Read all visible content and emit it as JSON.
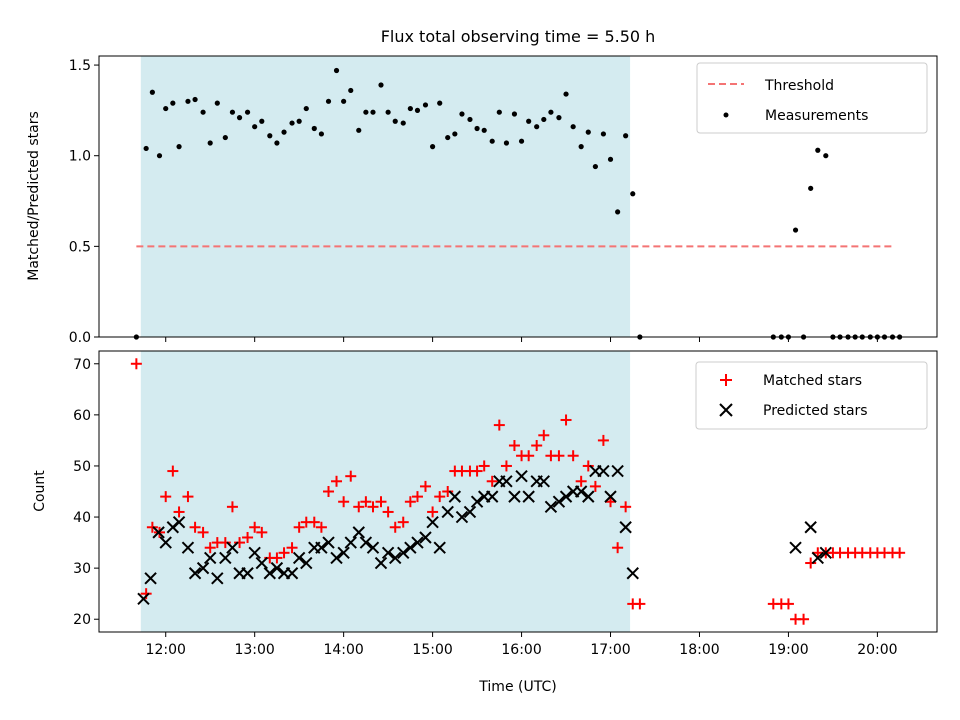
{
  "figure": {
    "title": "Flux total observing time = 5.50 h",
    "shaded_region": {
      "x_start": 11.72,
      "x_end": 17.22,
      "color": "#d4ebf0"
    }
  },
  "chart_data": [
    {
      "type": "scatter",
      "id": "top",
      "title": "Flux total observing time = 5.50 h",
      "xlabel": "",
      "ylabel": "Matched/Predicted stars",
      "xlim": [
        11.25,
        20.67
      ],
      "ylim": [
        0.0,
        1.55
      ],
      "yticks": [
        0.0,
        0.5,
        1.0,
        1.5
      ],
      "ytick_labels": [
        "0.0",
        "0.5",
        "1.0",
        "1.5"
      ],
      "threshold": {
        "name": "Threshold",
        "value": 0.5,
        "x_start": 11.67,
        "x_end": 20.2,
        "color": "#f47474"
      },
      "legend": {
        "position": "top-right",
        "entries": [
          "Threshold",
          "Measurements"
        ]
      },
      "series": [
        {
          "name": "Measurements",
          "color": "#000000",
          "x": [
            11.67,
            11.78,
            11.85,
            11.93,
            12.0,
            12.08,
            12.15,
            12.25,
            12.33,
            12.42,
            12.5,
            12.58,
            12.67,
            12.75,
            12.83,
            12.92,
            13.0,
            13.08,
            13.17,
            13.25,
            13.33,
            13.42,
            13.5,
            13.58,
            13.67,
            13.75,
            13.83,
            13.92,
            14.0,
            14.08,
            14.17,
            14.25,
            14.33,
            14.42,
            14.5,
            14.58,
            14.67,
            14.75,
            14.83,
            14.92,
            15.0,
            15.08,
            15.17,
            15.25,
            15.33,
            15.42,
            15.5,
            15.58,
            15.67,
            15.75,
            15.83,
            15.92,
            16.0,
            16.08,
            16.17,
            16.25,
            16.33,
            16.42,
            16.5,
            16.58,
            16.67,
            16.75,
            16.83,
            16.92,
            17.0,
            17.08,
            17.17,
            17.25,
            17.33,
            18.83,
            18.92,
            19.0,
            19.08,
            19.17,
            19.25,
            19.33,
            19.42,
            19.5,
            19.58,
            19.67,
            19.75,
            19.83,
            19.92,
            20.0,
            20.08,
            20.17,
            20.25
          ],
          "y": [
            0.0,
            1.04,
            1.35,
            1.0,
            1.26,
            1.29,
            1.05,
            1.3,
            1.31,
            1.24,
            1.07,
            1.29,
            1.1,
            1.24,
            1.21,
            1.24,
            1.16,
            1.19,
            1.11,
            1.07,
            1.13,
            1.18,
            1.19,
            1.26,
            1.15,
            1.12,
            1.3,
            1.47,
            1.3,
            1.36,
            1.14,
            1.24,
            1.24,
            1.39,
            1.24,
            1.19,
            1.18,
            1.26,
            1.25,
            1.28,
            1.05,
            1.29,
            1.1,
            1.12,
            1.23,
            1.2,
            1.15,
            1.14,
            1.08,
            1.24,
            1.07,
            1.23,
            1.08,
            1.19,
            1.16,
            1.2,
            1.24,
            1.21,
            1.34,
            1.16,
            1.05,
            1.13,
            0.94,
            1.12,
            0.98,
            0.69,
            1.11,
            0.79,
            0.0,
            0.0,
            0.0,
            0.0,
            0.59,
            0.0,
            0.82,
            1.03,
            1.0,
            0.0,
            0.0,
            0.0,
            0.0,
            0.0,
            0.0,
            0.0,
            0.0,
            0.0,
            0.0
          ]
        }
      ]
    },
    {
      "type": "scatter",
      "id": "bottom",
      "xlabel": "Time (UTC)",
      "ylabel": "Count",
      "xlim": [
        11.25,
        20.67
      ],
      "ylim": [
        17.5,
        72.5
      ],
      "xticks": [
        12,
        13,
        14,
        15,
        16,
        17,
        18,
        19,
        20
      ],
      "xtick_labels": [
        "12:00",
        "13:00",
        "14:00",
        "15:00",
        "16:00",
        "17:00",
        "18:00",
        "19:00",
        "20:00"
      ],
      "yticks": [
        20,
        30,
        40,
        50,
        60,
        70
      ],
      "ytick_labels": [
        "20",
        "30",
        "40",
        "50",
        "60",
        "70"
      ],
      "legend": {
        "position": "top-right",
        "entries": [
          "Matched stars",
          "Predicted stars"
        ]
      },
      "series": [
        {
          "name": "Matched stars",
          "color": "#ff0000",
          "marker": "plus",
          "x": [
            11.67,
            11.78,
            11.85,
            11.93,
            12.0,
            12.08,
            12.15,
            12.25,
            12.33,
            12.42,
            12.5,
            12.58,
            12.67,
            12.75,
            12.83,
            12.92,
            13.0,
            13.08,
            13.17,
            13.25,
            13.33,
            13.42,
            13.5,
            13.58,
            13.67,
            13.75,
            13.83,
            13.92,
            14.0,
            14.08,
            14.17,
            14.25,
            14.33,
            14.42,
            14.5,
            14.58,
            14.67,
            14.75,
            14.83,
            14.92,
            15.0,
            15.08,
            15.17,
            15.25,
            15.33,
            15.42,
            15.5,
            15.58,
            15.67,
            15.75,
            15.83,
            15.92,
            16.0,
            16.08,
            16.17,
            16.25,
            16.33,
            16.42,
            16.5,
            16.58,
            16.67,
            16.75,
            16.83,
            16.92,
            17.0,
            17.08,
            17.17,
            17.25,
            17.33,
            18.83,
            18.92,
            19.0,
            19.08,
            19.17,
            19.25,
            19.33,
            19.42,
            19.5,
            19.58,
            19.67,
            19.75,
            19.83,
            19.92,
            20.0,
            20.08,
            20.17,
            20.25
          ],
          "y": [
            70,
            25,
            38,
            37,
            44,
            49,
            41,
            44,
            38,
            37,
            34,
            35,
            35,
            42,
            35,
            36,
            38,
            37,
            32,
            32,
            33,
            34,
            38,
            39,
            39,
            38,
            45,
            47,
            43,
            48,
            42,
            43,
            42,
            43,
            41,
            38,
            39,
            43,
            44,
            46,
            41,
            44,
            45,
            49,
            49,
            49,
            49,
            50,
            47,
            58,
            50,
            54,
            52,
            52,
            54,
            56,
            52,
            52,
            59,
            52,
            47,
            50,
            46,
            55,
            43,
            34,
            42,
            23,
            23,
            23,
            23,
            23,
            20,
            20,
            31,
            33,
            33,
            33,
            33,
            33,
            33,
            33,
            33,
            33,
            33,
            33,
            33
          ]
        },
        {
          "name": "Predicted stars",
          "color": "#000000",
          "marker": "x",
          "x": [
            11.75,
            11.83,
            11.92,
            12.0,
            12.08,
            12.15,
            12.25,
            12.33,
            12.42,
            12.5,
            12.58,
            12.67,
            12.75,
            12.83,
            12.92,
            13.0,
            13.08,
            13.17,
            13.25,
            13.33,
            13.42,
            13.5,
            13.58,
            13.67,
            13.75,
            13.83,
            13.92,
            14.0,
            14.08,
            14.17,
            14.25,
            14.33,
            14.42,
            14.5,
            14.58,
            14.67,
            14.75,
            14.83,
            14.92,
            15.0,
            15.08,
            15.17,
            15.25,
            15.33,
            15.42,
            15.5,
            15.58,
            15.67,
            15.75,
            15.83,
            15.92,
            16.0,
            16.08,
            16.17,
            16.25,
            16.33,
            16.42,
            16.5,
            16.58,
            16.67,
            16.75,
            16.83,
            16.92,
            17.0,
            17.08,
            17.17,
            17.25,
            19.08,
            19.25,
            19.33,
            19.42
          ],
          "y": [
            24,
            28,
            37,
            35,
            38,
            39,
            34,
            29,
            30,
            32,
            28,
            32,
            34,
            29,
            29,
            33,
            31,
            29,
            30,
            29,
            29,
            32,
            31,
            34,
            34,
            35,
            32,
            33,
            35,
            37,
            35,
            34,
            31,
            33,
            32,
            33,
            34,
            35,
            36,
            39,
            34,
            41,
            44,
            40,
            41,
            43,
            44,
            44,
            47,
            47,
            44,
            48,
            44,
            47,
            47,
            42,
            43,
            44,
            45,
            45,
            44,
            49,
            49,
            44,
            49,
            38,
            29,
            34,
            38,
            32,
            33
          ]
        }
      ]
    }
  ]
}
